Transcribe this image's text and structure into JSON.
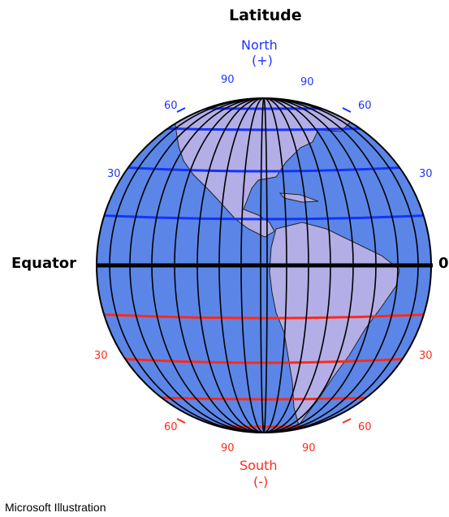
{
  "title": "Latitude",
  "north": {
    "name": "North",
    "sign": "(+)"
  },
  "south": {
    "name": "South",
    "sign": "(-)"
  },
  "equator": {
    "label": "Equator",
    "value": "0"
  },
  "north_labels": {
    "top_left": "90",
    "top_right": "90",
    "mid_left": "60",
    "mid_right": "60",
    "low_left": "30",
    "low_right": "30"
  },
  "south_labels": {
    "high_left": "30",
    "high_right": "30",
    "mid_left": "60",
    "mid_right": "60",
    "bot_left": "90",
    "bot_right": "90"
  },
  "credit": "Microsoft Illustration",
  "colors": {
    "ocean": "#5b86e8",
    "land": "#b3aee6",
    "north_lines": "#1133ff",
    "south_lines": "#ff2a1a",
    "meridians": "#000000"
  }
}
